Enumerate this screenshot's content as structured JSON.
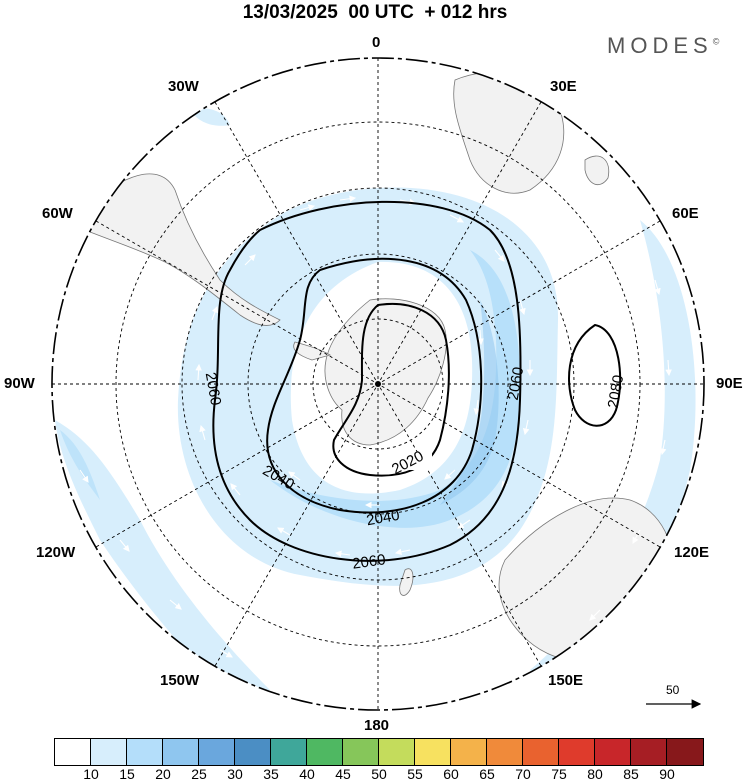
{
  "title": "13/03/2025  00 UTC  + 012 hrs",
  "brand": "MODES",
  "brand_mark": "©",
  "lon_labels": {
    "n0": "0",
    "e30": "30E",
    "e60": "60E",
    "e90": "90E",
    "e120": "120E",
    "e150": "150E",
    "s180": "180",
    "w150": "150W",
    "w120": "120W",
    "w90": "90W",
    "w60": "60W",
    "w30": "30W"
  },
  "contours": [
    {
      "label": "2020"
    },
    {
      "label": "2040"
    },
    {
      "label": "2060"
    },
    {
      "label": "2080"
    }
  ],
  "contour_labels": {
    "c2020": "2020",
    "c2040a": "2040",
    "c2040b": "2040",
    "c2060a": "2060",
    "c2060b": "2060",
    "c2060c": "2060",
    "c2080": "2080"
  },
  "vector_scale": "50",
  "legend": {
    "ticks": [
      "10",
      "15",
      "20",
      "25",
      "30",
      "35",
      "40",
      "45",
      "50",
      "55",
      "60",
      "65",
      "70",
      "75",
      "80",
      "85",
      "90"
    ],
    "colors": [
      "#ffffff",
      "#d7eefc",
      "#b4defa",
      "#8fc6ef",
      "#6aa7dd",
      "#4b8ec4",
      "#3fa79a",
      "#4fb862",
      "#86c65a",
      "#c4dc5c",
      "#f7e160",
      "#f4b24a",
      "#f08a3a",
      "#e9622f",
      "#df3b2c",
      "#c8262a",
      "#a61e24",
      "#87181b"
    ]
  }
}
